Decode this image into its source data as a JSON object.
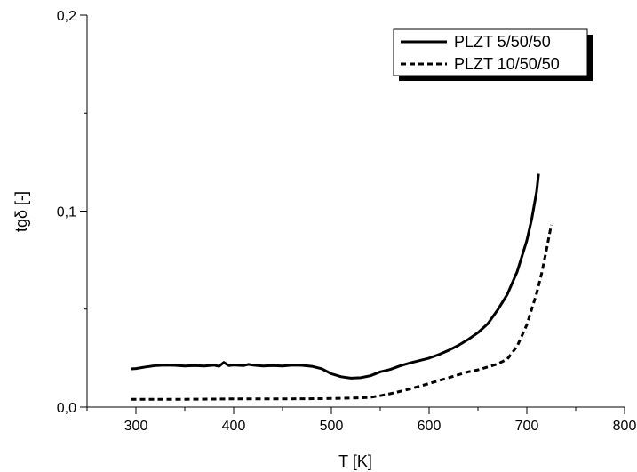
{
  "chart_data": {
    "type": "line",
    "xlabel": "T [K]",
    "ylabel": "tgδ [-]",
    "xlim": [
      250,
      800
    ],
    "ylim": [
      0,
      0.2
    ],
    "x_ticks": [
      300,
      400,
      500,
      600,
      700,
      800
    ],
    "x_tick_labels": [
      "300",
      "400",
      "500",
      "600",
      "700",
      "800"
    ],
    "y_ticks": [
      0,
      0.1,
      0.2
    ],
    "y_tick_labels": [
      "0,0",
      "0,1",
      "0,2"
    ],
    "grid": false,
    "legend_position": "top-right",
    "series": [
      {
        "name": "PLZT 5/50/50",
        "style": "solid",
        "color": "#000000",
        "x": [
          295,
          300,
          310,
          320,
          330,
          340,
          350,
          360,
          370,
          380,
          385,
          390,
          395,
          400,
          410,
          415,
          420,
          430,
          440,
          450,
          460,
          470,
          480,
          490,
          500,
          510,
          520,
          530,
          540,
          550,
          560,
          570,
          580,
          590,
          600,
          610,
          620,
          630,
          640,
          650,
          660,
          670,
          680,
          690,
          700,
          705,
          710,
          712
        ],
        "y": [
          0.0195,
          0.0197,
          0.0205,
          0.0212,
          0.0214,
          0.0213,
          0.021,
          0.0212,
          0.021,
          0.0214,
          0.0208,
          0.0228,
          0.0212,
          0.0215,
          0.0212,
          0.0218,
          0.0214,
          0.021,
          0.0212,
          0.021,
          0.0214,
          0.0213,
          0.0208,
          0.0196,
          0.017,
          0.0155,
          0.0148,
          0.015,
          0.016,
          0.018,
          0.0192,
          0.021,
          0.0225,
          0.0237,
          0.025,
          0.0268,
          0.029,
          0.0315,
          0.0345,
          0.038,
          0.0425,
          0.0495,
          0.0575,
          0.069,
          0.085,
          0.096,
          0.11,
          0.119
        ]
      },
      {
        "name": "PLZT 10/50/50",
        "style": "dashed",
        "color": "#000000",
        "x": [
          295,
          320,
          350,
          380,
          400,
          430,
          460,
          490,
          510,
          530,
          540,
          550,
          560,
          570,
          580,
          590,
          600,
          610,
          620,
          630,
          640,
          650,
          660,
          670,
          680,
          690,
          700,
          710,
          715,
          720,
          725
        ],
        "y": [
          0.004,
          0.004,
          0.004,
          0.0041,
          0.0042,
          0.0042,
          0.0042,
          0.0043,
          0.0045,
          0.0047,
          0.005,
          0.0058,
          0.0068,
          0.008,
          0.0092,
          0.0106,
          0.012,
          0.0135,
          0.015,
          0.0165,
          0.018,
          0.019,
          0.0205,
          0.022,
          0.0245,
          0.031,
          0.042,
          0.058,
          0.068,
          0.08,
          0.093
        ]
      }
    ]
  }
}
